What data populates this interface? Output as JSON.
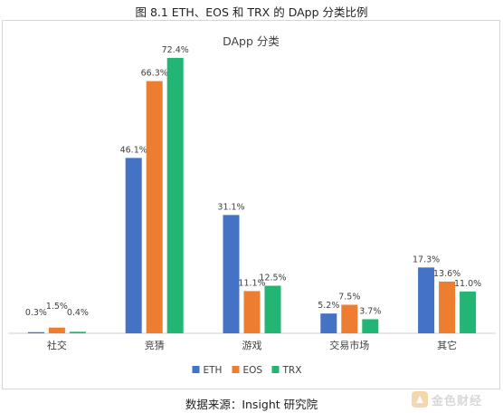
{
  "figure": {
    "caption": "图 8.1 ETH、EOS 和 TRX 的 DApp 分类比例",
    "source": "数据来源：Insight 研究院"
  },
  "watermark": {
    "text": "金色财经"
  },
  "chart_data": {
    "type": "bar",
    "title": "DApp 分类",
    "categories": [
      "社交",
      "竞猜",
      "游戏",
      "交易市场",
      "其它"
    ],
    "series": [
      {
        "name": "ETH",
        "color": "#4472c4",
        "values": [
          0.3,
          46.1,
          31.1,
          5.2,
          17.3
        ]
      },
      {
        "name": "EOS",
        "color": "#ed7d31",
        "values": [
          1.5,
          66.3,
          11.1,
          7.5,
          13.6
        ]
      },
      {
        "name": "TRX",
        "color": "#22b573",
        "values": [
          0.4,
          72.4,
          12.5,
          3.7,
          11.0
        ]
      }
    ],
    "value_suffix": "%",
    "ylim": [
      0,
      80
    ],
    "grid": false,
    "legend": "bottom-center"
  }
}
